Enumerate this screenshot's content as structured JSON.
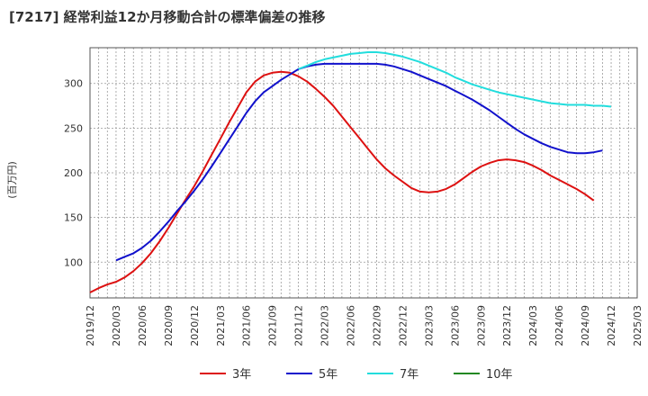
{
  "chart_data": {
    "type": "line",
    "title": "[7217]  経常利益12か月移動合計の標準偏差の推移",
    "ylabel": "(百万円)",
    "xlabel": "",
    "ylim": [
      60,
      340
    ],
    "yticks": [
      100,
      150,
      200,
      250,
      300
    ],
    "xticks": [
      "2019/12",
      "2020/03",
      "2020/06",
      "2020/09",
      "2020/12",
      "2021/03",
      "2021/06",
      "2021/09",
      "2021/12",
      "2022/03",
      "2022/06",
      "2022/09",
      "2022/12",
      "2023/03",
      "2023/06",
      "2023/09",
      "2023/12",
      "2024/03",
      "2024/06",
      "2024/09",
      "2024/12",
      "2025/03"
    ],
    "grid": true,
    "legend_position": "bottom",
    "series": [
      {
        "name": "3年",
        "color": "#dd1111",
        "points": [
          [
            "2019/12",
            66
          ],
          [
            "2020/01",
            71
          ],
          [
            "2020/02",
            75
          ],
          [
            "2020/03",
            78
          ],
          [
            "2020/04",
            83
          ],
          [
            "2020/05",
            90
          ],
          [
            "2020/06",
            99
          ],
          [
            "2020/07",
            110
          ],
          [
            "2020/08",
            123
          ],
          [
            "2020/09",
            138
          ],
          [
            "2020/10",
            154
          ],
          [
            "2020/11",
            170
          ],
          [
            "2020/12",
            185
          ],
          [
            "2021/01",
            202
          ],
          [
            "2021/02",
            220
          ],
          [
            "2021/03",
            238
          ],
          [
            "2021/04",
            256
          ],
          [
            "2021/05",
            273
          ],
          [
            "2021/06",
            290
          ],
          [
            "2021/07",
            302
          ],
          [
            "2021/08",
            309
          ],
          [
            "2021/09",
            312
          ],
          [
            "2021/10",
            313
          ],
          [
            "2021/11",
            312
          ],
          [
            "2021/12",
            308
          ],
          [
            "2022/01",
            302
          ],
          [
            "2022/02",
            294
          ],
          [
            "2022/03",
            285
          ],
          [
            "2022/04",
            275
          ],
          [
            "2022/05",
            263
          ],
          [
            "2022/06",
            251
          ],
          [
            "2022/07",
            239
          ],
          [
            "2022/08",
            227
          ],
          [
            "2022/09",
            215
          ],
          [
            "2022/10",
            205
          ],
          [
            "2022/11",
            197
          ],
          [
            "2022/12",
            190
          ],
          [
            "2023/01",
            183
          ],
          [
            "2023/02",
            179
          ],
          [
            "2023/03",
            178
          ],
          [
            "2023/04",
            179
          ],
          [
            "2023/05",
            182
          ],
          [
            "2023/06",
            187
          ],
          [
            "2023/07",
            194
          ],
          [
            "2023/08",
            201
          ],
          [
            "2023/09",
            207
          ],
          [
            "2023/10",
            211
          ],
          [
            "2023/11",
            214
          ],
          [
            "2023/12",
            215
          ],
          [
            "2024/01",
            214
          ],
          [
            "2024/02",
            212
          ],
          [
            "2024/03",
            208
          ],
          [
            "2024/04",
            203
          ],
          [
            "2024/05",
            197
          ],
          [
            "2024/06",
            192
          ],
          [
            "2024/07",
            187
          ],
          [
            "2024/08",
            182
          ],
          [
            "2024/09",
            176
          ],
          [
            "2024/10",
            169
          ]
        ]
      },
      {
        "name": "5年",
        "color": "#1111cc",
        "points": [
          [
            "2020/03",
            102
          ],
          [
            "2020/04",
            106
          ],
          [
            "2020/05",
            110
          ],
          [
            "2020/06",
            116
          ],
          [
            "2020/07",
            124
          ],
          [
            "2020/08",
            134
          ],
          [
            "2020/09",
            145
          ],
          [
            "2020/10",
            157
          ],
          [
            "2020/11",
            168
          ],
          [
            "2020/12",
            180
          ],
          [
            "2021/01",
            193
          ],
          [
            "2021/02",
            207
          ],
          [
            "2021/03",
            222
          ],
          [
            "2021/04",
            237
          ],
          [
            "2021/05",
            252
          ],
          [
            "2021/06",
            267
          ],
          [
            "2021/07",
            280
          ],
          [
            "2021/08",
            290
          ],
          [
            "2021/09",
            297
          ],
          [
            "2021/10",
            304
          ],
          [
            "2021/11",
            310
          ],
          [
            "2021/12",
            316
          ],
          [
            "2022/01",
            319
          ],
          [
            "2022/02",
            321
          ],
          [
            "2022/03",
            322
          ],
          [
            "2022/04",
            322
          ],
          [
            "2022/05",
            322
          ],
          [
            "2022/06",
            322
          ],
          [
            "2022/07",
            322
          ],
          [
            "2022/08",
            322
          ],
          [
            "2022/09",
            322
          ],
          [
            "2022/10",
            321
          ],
          [
            "2022/11",
            319
          ],
          [
            "2022/12",
            316
          ],
          [
            "2023/01",
            313
          ],
          [
            "2023/02",
            309
          ],
          [
            "2023/03",
            305
          ],
          [
            "2023/04",
            301
          ],
          [
            "2023/05",
            297
          ],
          [
            "2023/06",
            292
          ],
          [
            "2023/07",
            287
          ],
          [
            "2023/08",
            282
          ],
          [
            "2023/09",
            276
          ],
          [
            "2023/10",
            270
          ],
          [
            "2023/11",
            263
          ],
          [
            "2023/12",
            256
          ],
          [
            "2024/01",
            249
          ],
          [
            "2024/02",
            243
          ],
          [
            "2024/03",
            238
          ],
          [
            "2024/04",
            233
          ],
          [
            "2024/05",
            229
          ],
          [
            "2024/06",
            226
          ],
          [
            "2024/07",
            223
          ],
          [
            "2024/08",
            222
          ],
          [
            "2024/09",
            222
          ],
          [
            "2024/10",
            223
          ],
          [
            "2024/11",
            225
          ]
        ]
      },
      {
        "name": "7年",
        "color": "#22dddd",
        "points": [
          [
            "2021/12",
            316
          ],
          [
            "2022/01",
            320
          ],
          [
            "2022/02",
            324
          ],
          [
            "2022/03",
            327
          ],
          [
            "2022/04",
            329
          ],
          [
            "2022/05",
            331
          ],
          [
            "2022/06",
            333
          ],
          [
            "2022/07",
            334
          ],
          [
            "2022/08",
            335
          ],
          [
            "2022/09",
            335
          ],
          [
            "2022/10",
            334
          ],
          [
            "2022/11",
            332
          ],
          [
            "2022/12",
            330
          ],
          [
            "2023/01",
            327
          ],
          [
            "2023/02",
            324
          ],
          [
            "2023/03",
            320
          ],
          [
            "2023/04",
            316
          ],
          [
            "2023/05",
            312
          ],
          [
            "2023/06",
            307
          ],
          [
            "2023/07",
            303
          ],
          [
            "2023/08",
            299
          ],
          [
            "2023/09",
            296
          ],
          [
            "2023/10",
            293
          ],
          [
            "2023/11",
            290
          ],
          [
            "2023/12",
            288
          ],
          [
            "2024/01",
            286
          ],
          [
            "2024/02",
            284
          ],
          [
            "2024/03",
            282
          ],
          [
            "2024/04",
            280
          ],
          [
            "2024/05",
            278
          ],
          [
            "2024/06",
            277
          ],
          [
            "2024/07",
            276
          ],
          [
            "2024/08",
            276
          ],
          [
            "2024/09",
            276
          ],
          [
            "2024/10",
            275
          ],
          [
            "2024/11",
            275
          ],
          [
            "2024/12",
            274
          ]
        ]
      },
      {
        "name": "10年",
        "color": "#228822",
        "points": []
      }
    ]
  }
}
